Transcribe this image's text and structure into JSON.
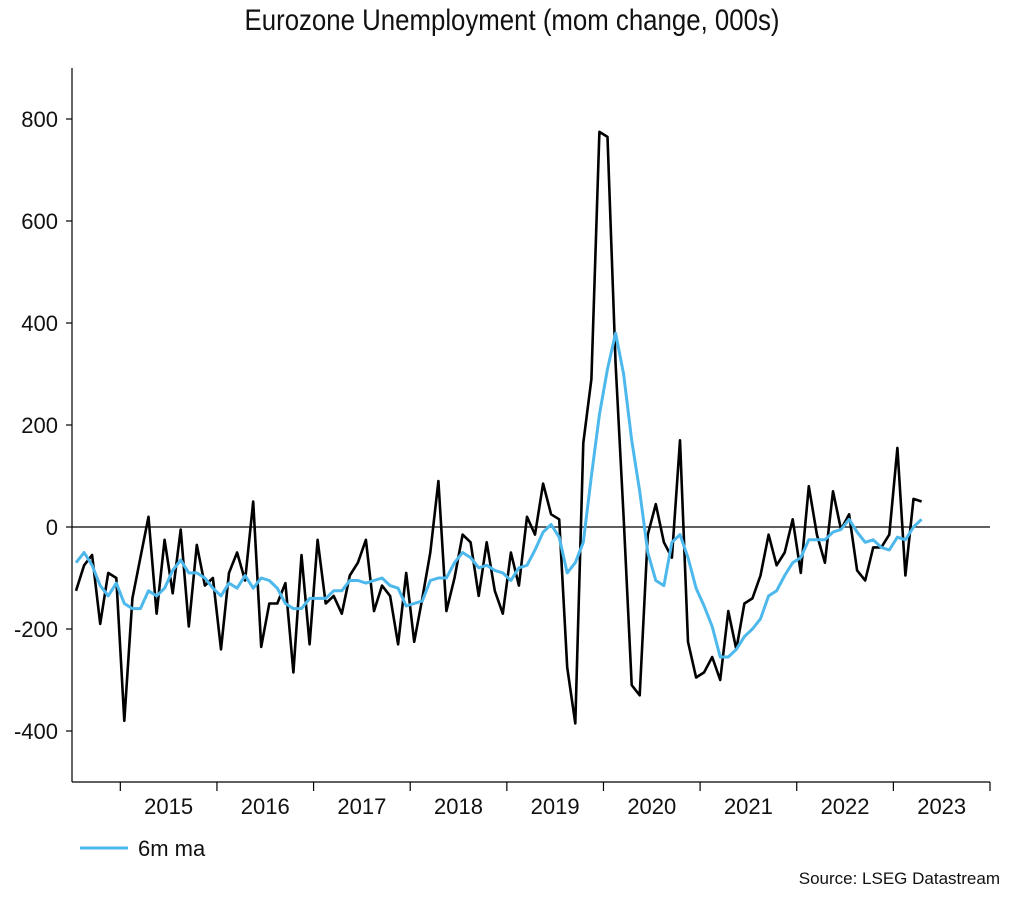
{
  "chart_data": {
    "type": "line",
    "title": "Eurozone Unemployment (mom change, 000s)",
    "xlabel": "",
    "ylabel": "",
    "ylim": [
      -500,
      900
    ],
    "y_ticks": [
      800,
      600,
      400,
      200,
      0,
      -200,
      -400
    ],
    "x_range": [
      "2014-07",
      "2023-12"
    ],
    "x_tick_labels": [
      "2015",
      "2016",
      "2017",
      "2018",
      "2019",
      "2020",
      "2021",
      "2022",
      "2023"
    ],
    "zero_line": true,
    "grid": false,
    "legend_position": "bottom-left",
    "source": "Source: LSEG Datastream",
    "series": [
      {
        "name": "",
        "color": "#000000",
        "start": "2014-07",
        "values": [
          -125,
          -75,
          -55,
          -190,
          -90,
          -100,
          -380,
          -140,
          -60,
          20,
          -170,
          -25,
          -130,
          -5,
          -195,
          -35,
          -115,
          -100,
          -240,
          -90,
          -50,
          -105,
          50,
          -235,
          -150,
          -150,
          -110,
          -285,
          -55,
          -230,
          -25,
          -150,
          -135,
          -170,
          -95,
          -70,
          -25,
          -165,
          -115,
          -135,
          -230,
          -90,
          -225,
          -140,
          -50,
          90,
          -165,
          -100,
          -15,
          -30,
          -135,
          -30,
          -125,
          -170,
          -50,
          -115,
          20,
          -15,
          85,
          25,
          15,
          -275,
          -385,
          165,
          290,
          775,
          765,
          320,
          20,
          -310,
          -330,
          -15,
          45,
          -30,
          -60,
          170,
          -225,
          -295,
          -285,
          -255,
          -300,
          -165,
          -240,
          -150,
          -140,
          -95,
          -15,
          -75,
          -50,
          15,
          -90,
          80,
          -15,
          -70,
          70,
          -5,
          25,
          -85,
          -105,
          -40,
          -40,
          -15,
          155,
          -95,
          55,
          50
        ]
      },
      {
        "name": "6m ma",
        "color": "#4db8ec",
        "start": "2014-07",
        "values": [
          -70,
          -50,
          -75,
          -115,
          -135,
          -110,
          -150,
          -160,
          -160,
          -125,
          -135,
          -120,
          -85,
          -65,
          -90,
          -90,
          -100,
          -120,
          -135,
          -110,
          -120,
          -95,
          -120,
          -100,
          -105,
          -120,
          -150,
          -160,
          -160,
          -140,
          -140,
          -140,
          -125,
          -125,
          -105,
          -105,
          -110,
          -105,
          -100,
          -115,
          -120,
          -155,
          -150,
          -145,
          -105,
          -100,
          -100,
          -70,
          -50,
          -60,
          -80,
          -75,
          -85,
          -90,
          -105,
          -80,
          -75,
          -45,
          -10,
          5,
          -20,
          -90,
          -70,
          -30,
          100,
          220,
          310,
          380,
          300,
          170,
          70,
          -50,
          -105,
          -115,
          -30,
          -15,
          -60,
          -120,
          -155,
          -195,
          -255,
          -255,
          -240,
          -215,
          -200,
          -180,
          -135,
          -125,
          -95,
          -70,
          -60,
          -25,
          -25,
          -25,
          -10,
          -5,
          15,
          -10,
          -30,
          -25,
          -40,
          -45,
          -20,
          -25,
          0,
          15
        ]
      }
    ]
  }
}
